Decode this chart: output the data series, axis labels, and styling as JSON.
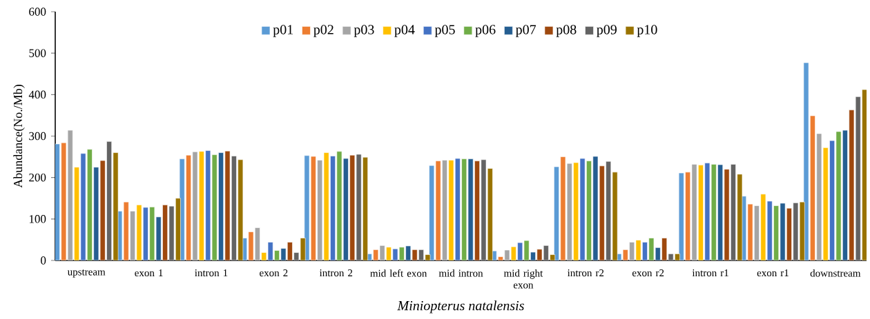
{
  "chart_data": {
    "type": "bar",
    "xlabel": "*Miniopterus natalensis*",
    "ylabel": "Abundance(No./Mb)",
    "categories": [
      "upstream",
      "exon 1",
      "intron 1",
      "exon 2",
      "intron 2",
      "mid left exon",
      "mid intron",
      "mid right exon",
      "intron r2",
      "exon r2",
      "intron r1",
      "exon r1",
      "downstream"
    ],
    "ylim": [
      0,
      600
    ],
    "yticks": [
      0,
      100,
      200,
      300,
      400,
      500,
      600
    ],
    "grid": false,
    "legend": "top",
    "series": [
      {
        "name": "p01",
        "color": "#5b9bd5",
        "values": [
          281,
          119,
          245,
          54,
          253,
          16,
          229,
          23,
          226,
          16,
          211,
          155,
          477
        ]
      },
      {
        "name": "p02",
        "color": "#ed7d31",
        "values": [
          284,
          141,
          254,
          69,
          251,
          26,
          240,
          9,
          250,
          26,
          213,
          136,
          349
        ]
      },
      {
        "name": "p03",
        "color": "#a5a5a5",
        "values": [
          314,
          119,
          262,
          79,
          242,
          36,
          242,
          25,
          234,
          44,
          232,
          132,
          306
        ]
      },
      {
        "name": "p04",
        "color": "#ffc000",
        "values": [
          225,
          134,
          263,
          19,
          260,
          32,
          242,
          33,
          236,
          49,
          230,
          160,
          272
        ]
      },
      {
        "name": "p05",
        "color": "#4472c4",
        "values": [
          258,
          128,
          265,
          44,
          252,
          28,
          246,
          43,
          246,
          44,
          235,
          143,
          289
        ]
      },
      {
        "name": "p06",
        "color": "#70ad47",
        "values": [
          268,
          129,
          255,
          24,
          263,
          32,
          245,
          48,
          240,
          54,
          232,
          132,
          311
        ]
      },
      {
        "name": "p07",
        "color": "#255e91",
        "values": [
          225,
          105,
          260,
          29,
          246,
          35,
          245,
          20,
          251,
          31,
          231,
          138,
          314
        ]
      },
      {
        "name": "p08",
        "color": "#9e480e",
        "values": [
          241,
          134,
          264,
          44,
          254,
          26,
          240,
          27,
          228,
          54,
          220,
          126,
          363
        ]
      },
      {
        "name": "p09",
        "color": "#636363",
        "values": [
          287,
          131,
          252,
          19,
          256,
          26,
          243,
          36,
          239,
          16,
          232,
          139,
          395
        ]
      },
      {
        "name": "p10",
        "color": "#997300",
        "values": [
          260,
          150,
          243,
          54,
          249,
          14,
          222,
          14,
          213,
          16,
          208,
          141,
          412
        ]
      }
    ]
  }
}
